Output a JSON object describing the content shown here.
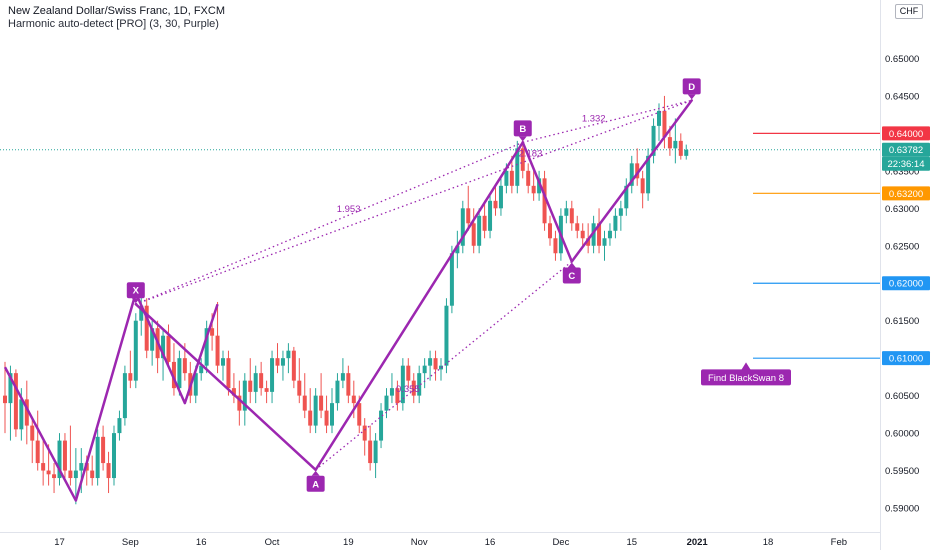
{
  "header": {
    "title": "New Zealand Dollar/Swiss Franc, 1D, FXCM",
    "indicator": "Harmonic auto-detect [PRO] (3, 30, Purple)",
    "currency": "CHF"
  },
  "colors": {
    "up": "#26a69a",
    "down": "#ef5350",
    "pattern": "#9c27b0",
    "line_red": "#f23645",
    "line_orange": "#ff9800",
    "line_blue": "#2196f3",
    "tag_dark": "#131722"
  },
  "chart_data": {
    "type": "candlestick",
    "symbol": "NZDCHF",
    "timeframe": "1D",
    "ylim": [
      0.5868,
      0.6578
    ],
    "x_ticks": [
      "17",
      "Sep",
      "16",
      "Oct",
      "19",
      "Nov",
      "16",
      "Dec",
      "15",
      "2021",
      "18",
      "Feb"
    ],
    "y_ticks": [
      "0.65000",
      "0.64500",
      "0.64000",
      "0.63500",
      "0.63000",
      "0.62500",
      "0.62000",
      "0.61500",
      "0.61000",
      "0.60500",
      "0.60000",
      "0.59500",
      "0.59000"
    ],
    "candles": [
      {
        "o": 0.605,
        "h": 0.6095,
        "l": 0.6,
        "c": 0.604
      },
      {
        "o": 0.604,
        "h": 0.609,
        "l": 0.599,
        "c": 0.608
      },
      {
        "o": 0.608,
        "h": 0.6085,
        "l": 0.5995,
        "c": 0.6005
      },
      {
        "o": 0.6005,
        "h": 0.606,
        "l": 0.599,
        "c": 0.6045
      },
      {
        "o": 0.6045,
        "h": 0.607,
        "l": 0.5985,
        "c": 0.601
      },
      {
        "o": 0.601,
        "h": 0.602,
        "l": 0.596,
        "c": 0.599
      },
      {
        "o": 0.599,
        "h": 0.603,
        "l": 0.595,
        "c": 0.596
      },
      {
        "o": 0.596,
        "h": 0.599,
        "l": 0.593,
        "c": 0.595
      },
      {
        "o": 0.595,
        "h": 0.5985,
        "l": 0.593,
        "c": 0.5945
      },
      {
        "o": 0.5945,
        "h": 0.596,
        "l": 0.592,
        "c": 0.594
      },
      {
        "o": 0.594,
        "h": 0.6,
        "l": 0.593,
        "c": 0.599
      },
      {
        "o": 0.599,
        "h": 0.6,
        "l": 0.594,
        "c": 0.595
      },
      {
        "o": 0.595,
        "h": 0.601,
        "l": 0.593,
        "c": 0.594
      },
      {
        "o": 0.594,
        "h": 0.598,
        "l": 0.5905,
        "c": 0.595
      },
      {
        "o": 0.595,
        "h": 0.598,
        "l": 0.592,
        "c": 0.596
      },
      {
        "o": 0.596,
        "h": 0.597,
        "l": 0.593,
        "c": 0.595
      },
      {
        "o": 0.595,
        "h": 0.597,
        "l": 0.593,
        "c": 0.594
      },
      {
        "o": 0.594,
        "h": 0.6005,
        "l": 0.593,
        "c": 0.5995
      },
      {
        "o": 0.5995,
        "h": 0.601,
        "l": 0.595,
        "c": 0.596
      },
      {
        "o": 0.596,
        "h": 0.5975,
        "l": 0.592,
        "c": 0.594
      },
      {
        "o": 0.594,
        "h": 0.601,
        "l": 0.593,
        "c": 0.6
      },
      {
        "o": 0.6,
        "h": 0.603,
        "l": 0.599,
        "c": 0.602
      },
      {
        "o": 0.602,
        "h": 0.609,
        "l": 0.601,
        "c": 0.608
      },
      {
        "o": 0.608,
        "h": 0.611,
        "l": 0.606,
        "c": 0.607
      },
      {
        "o": 0.607,
        "h": 0.616,
        "l": 0.606,
        "c": 0.615
      },
      {
        "o": 0.615,
        "h": 0.6185,
        "l": 0.613,
        "c": 0.617
      },
      {
        "o": 0.617,
        "h": 0.618,
        "l": 0.61,
        "c": 0.611
      },
      {
        "o": 0.611,
        "h": 0.615,
        "l": 0.609,
        "c": 0.614
      },
      {
        "o": 0.614,
        "h": 0.615,
        "l": 0.608,
        "c": 0.61
      },
      {
        "o": 0.61,
        "h": 0.614,
        "l": 0.607,
        "c": 0.613
      },
      {
        "o": 0.613,
        "h": 0.6145,
        "l": 0.609,
        "c": 0.6095
      },
      {
        "o": 0.6095,
        "h": 0.612,
        "l": 0.605,
        "c": 0.606
      },
      {
        "o": 0.606,
        "h": 0.611,
        "l": 0.605,
        "c": 0.61
      },
      {
        "o": 0.61,
        "h": 0.612,
        "l": 0.607,
        "c": 0.608
      },
      {
        "o": 0.608,
        "h": 0.6095,
        "l": 0.604,
        "c": 0.605
      },
      {
        "o": 0.605,
        "h": 0.609,
        "l": 0.604,
        "c": 0.608
      },
      {
        "o": 0.608,
        "h": 0.61,
        "l": 0.607,
        "c": 0.609
      },
      {
        "o": 0.609,
        "h": 0.615,
        "l": 0.608,
        "c": 0.614
      },
      {
        "o": 0.614,
        "h": 0.616,
        "l": 0.611,
        "c": 0.613
      },
      {
        "o": 0.613,
        "h": 0.6175,
        "l": 0.608,
        "c": 0.609
      },
      {
        "o": 0.609,
        "h": 0.611,
        "l": 0.607,
        "c": 0.61
      },
      {
        "o": 0.61,
        "h": 0.611,
        "l": 0.605,
        "c": 0.606
      },
      {
        "o": 0.606,
        "h": 0.608,
        "l": 0.604,
        "c": 0.605
      },
      {
        "o": 0.605,
        "h": 0.607,
        "l": 0.601,
        "c": 0.603
      },
      {
        "o": 0.603,
        "h": 0.608,
        "l": 0.601,
        "c": 0.607
      },
      {
        "o": 0.607,
        "h": 0.61,
        "l": 0.604,
        "c": 0.6055
      },
      {
        "o": 0.6055,
        "h": 0.609,
        "l": 0.604,
        "c": 0.608
      },
      {
        "o": 0.608,
        "h": 0.6095,
        "l": 0.605,
        "c": 0.606
      },
      {
        "o": 0.606,
        "h": 0.607,
        "l": 0.604,
        "c": 0.6055
      },
      {
        "o": 0.6055,
        "h": 0.611,
        "l": 0.604,
        "c": 0.61
      },
      {
        "o": 0.61,
        "h": 0.612,
        "l": 0.608,
        "c": 0.609
      },
      {
        "o": 0.609,
        "h": 0.611,
        "l": 0.607,
        "c": 0.61
      },
      {
        "o": 0.61,
        "h": 0.612,
        "l": 0.608,
        "c": 0.611
      },
      {
        "o": 0.611,
        "h": 0.6115,
        "l": 0.606,
        "c": 0.607
      },
      {
        "o": 0.607,
        "h": 0.61,
        "l": 0.604,
        "c": 0.605
      },
      {
        "o": 0.605,
        "h": 0.608,
        "l": 0.602,
        "c": 0.603
      },
      {
        "o": 0.603,
        "h": 0.606,
        "l": 0.6,
        "c": 0.601
      },
      {
        "o": 0.601,
        "h": 0.606,
        "l": 0.6,
        "c": 0.605
      },
      {
        "o": 0.605,
        "h": 0.608,
        "l": 0.602,
        "c": 0.603
      },
      {
        "o": 0.603,
        "h": 0.605,
        "l": 0.6,
        "c": 0.601
      },
      {
        "o": 0.601,
        "h": 0.606,
        "l": 0.6,
        "c": 0.604
      },
      {
        "o": 0.604,
        "h": 0.608,
        "l": 0.603,
        "c": 0.607
      },
      {
        "o": 0.607,
        "h": 0.61,
        "l": 0.606,
        "c": 0.608
      },
      {
        "o": 0.608,
        "h": 0.609,
        "l": 0.604,
        "c": 0.605
      },
      {
        "o": 0.605,
        "h": 0.607,
        "l": 0.602,
        "c": 0.604
      },
      {
        "o": 0.604,
        "h": 0.605,
        "l": 0.6,
        "c": 0.601
      },
      {
        "o": 0.601,
        "h": 0.602,
        "l": 0.597,
        "c": 0.599
      },
      {
        "o": 0.599,
        "h": 0.601,
        "l": 0.595,
        "c": 0.596
      },
      {
        "o": 0.596,
        "h": 0.6,
        "l": 0.594,
        "c": 0.599
      },
      {
        "o": 0.599,
        "h": 0.604,
        "l": 0.598,
        "c": 0.603
      },
      {
        "o": 0.603,
        "h": 0.606,
        "l": 0.602,
        "c": 0.605
      },
      {
        "o": 0.605,
        "h": 0.608,
        "l": 0.604,
        "c": 0.606
      },
      {
        "o": 0.606,
        "h": 0.607,
        "l": 0.603,
        "c": 0.604
      },
      {
        "o": 0.604,
        "h": 0.61,
        "l": 0.603,
        "c": 0.609
      },
      {
        "o": 0.609,
        "h": 0.61,
        "l": 0.606,
        "c": 0.607
      },
      {
        "o": 0.607,
        "h": 0.608,
        "l": 0.604,
        "c": 0.605
      },
      {
        "o": 0.605,
        "h": 0.609,
        "l": 0.604,
        "c": 0.608
      },
      {
        "o": 0.608,
        "h": 0.61,
        "l": 0.606,
        "c": 0.609
      },
      {
        "o": 0.609,
        "h": 0.611,
        "l": 0.607,
        "c": 0.61
      },
      {
        "o": 0.61,
        "h": 0.611,
        "l": 0.607,
        "c": 0.6085
      },
      {
        "o": 0.6085,
        "h": 0.61,
        "l": 0.607,
        "c": 0.609
      },
      {
        "o": 0.609,
        "h": 0.618,
        "l": 0.608,
        "c": 0.617
      },
      {
        "o": 0.617,
        "h": 0.625,
        "l": 0.616,
        "c": 0.624
      },
      {
        "o": 0.624,
        "h": 0.627,
        "l": 0.622,
        "c": 0.625
      },
      {
        "o": 0.625,
        "h": 0.631,
        "l": 0.624,
        "c": 0.63
      },
      {
        "o": 0.63,
        "h": 0.633,
        "l": 0.627,
        "c": 0.628
      },
      {
        "o": 0.628,
        "h": 0.63,
        "l": 0.624,
        "c": 0.625
      },
      {
        "o": 0.625,
        "h": 0.63,
        "l": 0.624,
        "c": 0.629
      },
      {
        "o": 0.629,
        "h": 0.631,
        "l": 0.626,
        "c": 0.627
      },
      {
        "o": 0.627,
        "h": 0.632,
        "l": 0.626,
        "c": 0.631
      },
      {
        "o": 0.631,
        "h": 0.633,
        "l": 0.629,
        "c": 0.63
      },
      {
        "o": 0.63,
        "h": 0.634,
        "l": 0.629,
        "c": 0.633
      },
      {
        "o": 0.633,
        "h": 0.636,
        "l": 0.632,
        "c": 0.635
      },
      {
        "o": 0.635,
        "h": 0.637,
        "l": 0.632,
        "c": 0.633
      },
      {
        "o": 0.633,
        "h": 0.639,
        "l": 0.632,
        "c": 0.638
      },
      {
        "o": 0.638,
        "h": 0.639,
        "l": 0.634,
        "c": 0.635
      },
      {
        "o": 0.635,
        "h": 0.636,
        "l": 0.632,
        "c": 0.633
      },
      {
        "o": 0.633,
        "h": 0.635,
        "l": 0.631,
        "c": 0.632
      },
      {
        "o": 0.632,
        "h": 0.635,
        "l": 0.631,
        "c": 0.634
      },
      {
        "o": 0.634,
        "h": 0.635,
        "l": 0.627,
        "c": 0.628
      },
      {
        "o": 0.628,
        "h": 0.629,
        "l": 0.625,
        "c": 0.626
      },
      {
        "o": 0.626,
        "h": 0.627,
        "l": 0.623,
        "c": 0.624
      },
      {
        "o": 0.624,
        "h": 0.63,
        "l": 0.623,
        "c": 0.629
      },
      {
        "o": 0.629,
        "h": 0.631,
        "l": 0.628,
        "c": 0.63
      },
      {
        "o": 0.63,
        "h": 0.631,
        "l": 0.627,
        "c": 0.628
      },
      {
        "o": 0.628,
        "h": 0.629,
        "l": 0.626,
        "c": 0.627
      },
      {
        "o": 0.627,
        "h": 0.628,
        "l": 0.625,
        "c": 0.626
      },
      {
        "o": 0.626,
        "h": 0.628,
        "l": 0.624,
        "c": 0.625
      },
      {
        "o": 0.625,
        "h": 0.629,
        "l": 0.624,
        "c": 0.628
      },
      {
        "o": 0.628,
        "h": 0.63,
        "l": 0.624,
        "c": 0.625
      },
      {
        "o": 0.625,
        "h": 0.627,
        "l": 0.623,
        "c": 0.626
      },
      {
        "o": 0.626,
        "h": 0.628,
        "l": 0.625,
        "c": 0.627
      },
      {
        "o": 0.627,
        "h": 0.63,
        "l": 0.626,
        "c": 0.629
      },
      {
        "o": 0.629,
        "h": 0.631,
        "l": 0.627,
        "c": 0.63
      },
      {
        "o": 0.63,
        "h": 0.634,
        "l": 0.629,
        "c": 0.633
      },
      {
        "o": 0.633,
        "h": 0.637,
        "l": 0.632,
        "c": 0.636
      },
      {
        "o": 0.636,
        "h": 0.638,
        "l": 0.633,
        "c": 0.634
      },
      {
        "o": 0.634,
        "h": 0.635,
        "l": 0.63,
        "c": 0.632
      },
      {
        "o": 0.632,
        "h": 0.638,
        "l": 0.631,
        "c": 0.637
      },
      {
        "o": 0.637,
        "h": 0.642,
        "l": 0.636,
        "c": 0.641
      },
      {
        "o": 0.641,
        "h": 0.644,
        "l": 0.639,
        "c": 0.643
      },
      {
        "o": 0.643,
        "h": 0.645,
        "l": 0.638,
        "c": 0.6395
      },
      {
        "o": 0.6395,
        "h": 0.641,
        "l": 0.637,
        "c": 0.638
      },
      {
        "o": 0.638,
        "h": 0.642,
        "l": 0.636,
        "c": 0.639
      },
      {
        "o": 0.639,
        "h": 0.64,
        "l": 0.6365,
        "c": 0.637
      },
      {
        "o": 0.637,
        "h": 0.6385,
        "l": 0.6365,
        "c": 0.6378
      }
    ],
    "pattern": {
      "points": [
        {
          "label": "X",
          "i": 24,
          "price": 0.6172
        },
        {
          "label": "A",
          "i": 57,
          "price": 0.5951
        },
        {
          "label": "B",
          "i": 95,
          "price": 0.6388
        },
        {
          "label": "C",
          "i": 104,
          "price": 0.6229
        },
        {
          "label": "D",
          "i": 126,
          "price": 0.6444
        }
      ],
      "ratios": [
        {
          "text": "1.953",
          "from": "X",
          "to": "B",
          "at": 0.55
        },
        {
          "text": "2.183",
          "from": "X",
          "to": "D",
          "at": 0.71
        },
        {
          "text": "1.332",
          "from": "B",
          "to": "D",
          "at": 0.42
        },
        {
          "text": "0.355",
          "from": "A",
          "to": "C",
          "at": 0.36
        }
      ]
    },
    "levels": [
      {
        "price": 0.64,
        "label": "0.64000",
        "color": "#f23645"
      },
      {
        "price": 0.632,
        "label": "0.63200",
        "color": "#ff9800"
      },
      {
        "price": 0.62,
        "label": "0.62000",
        "color": "#2196f3"
      },
      {
        "price": 0.61,
        "label": "0.61000",
        "color": "#2196f3"
      }
    ],
    "last_price": {
      "price": 0.63782,
      "label": "0.63782",
      "countdown": "22:36:14"
    },
    "annotation": {
      "text": "Find BlackSwan 8",
      "price": 0.6085,
      "i": 140
    }
  }
}
